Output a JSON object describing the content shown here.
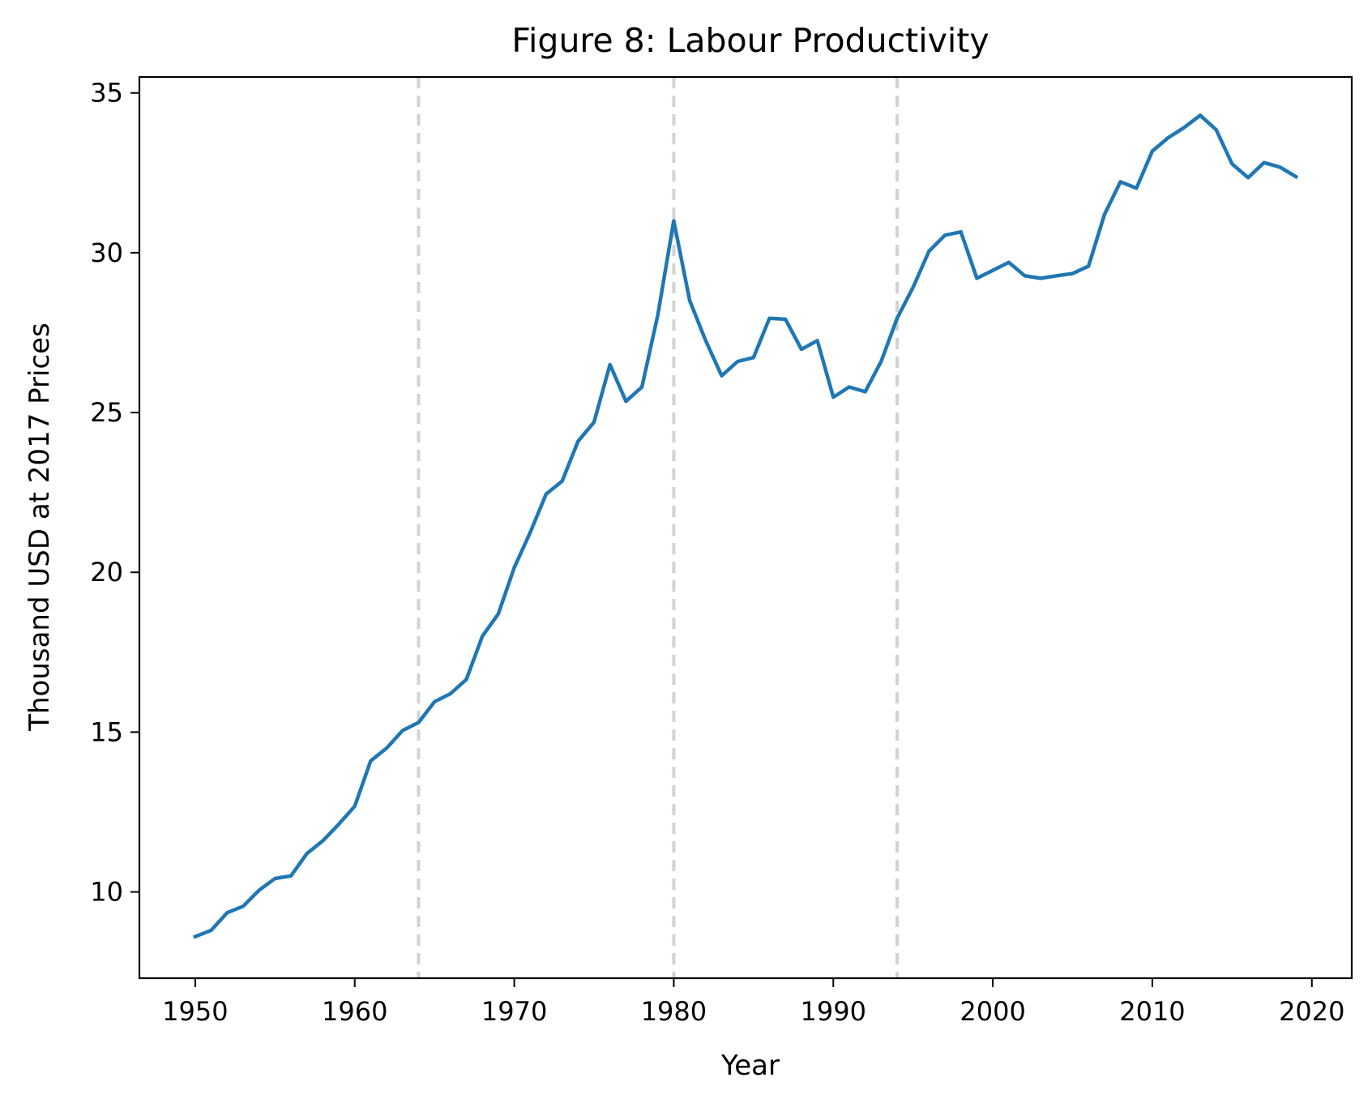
{
  "chart_data": {
    "type": "line",
    "title": "Figure 8: Labour Productivity",
    "xlabel": "Year",
    "ylabel": "Thousand USD at 2017 Prices",
    "xlim": [
      1946.5,
      2022.5
    ],
    "ylim": [
      7.3,
      35.5
    ],
    "x_ticks": [
      1950,
      1960,
      1970,
      1980,
      1990,
      2000,
      2010,
      2020
    ],
    "y_ticks": [
      10,
      15,
      20,
      25,
      30,
      35
    ],
    "grid": false,
    "vertical_reference_lines": {
      "x": [
        1964,
        1980,
        1994
      ],
      "style": "dashed",
      "color": "#d3d3d3"
    },
    "series": [
      {
        "color": "#1f77b4",
        "x": [
          1950,
          1951,
          1952,
          1953,
          1954,
          1955,
          1956,
          1957,
          1958,
          1959,
          1960,
          1961,
          1962,
          1963,
          1964,
          1965,
          1966,
          1967,
          1968,
          1969,
          1970,
          1971,
          1972,
          1973,
          1974,
          1975,
          1976,
          1977,
          1978,
          1979,
          1980,
          1981,
          1982,
          1983,
          1984,
          1985,
          1986,
          1987,
          1988,
          1989,
          1990,
          1991,
          1992,
          1993,
          1994,
          1995,
          1996,
          1997,
          1998,
          1999,
          2000,
          2001,
          2002,
          2003,
          2004,
          2005,
          2006,
          2007,
          2008,
          2009,
          2010,
          2011,
          2012,
          2013,
          2014,
          2015,
          2016,
          2017,
          2018,
          2019
        ],
        "values": [
          8.6,
          8.8,
          9.35,
          9.55,
          10.05,
          10.42,
          10.5,
          11.2,
          11.6,
          12.12,
          12.68,
          14.1,
          14.5,
          15.05,
          15.3,
          15.95,
          16.2,
          16.65,
          18.0,
          18.7,
          20.15,
          21.25,
          22.45,
          22.85,
          24.1,
          24.7,
          26.5,
          25.35,
          25.8,
          28.05,
          31.0,
          28.5,
          27.25,
          26.15,
          26.6,
          26.72,
          27.95,
          27.92,
          26.98,
          27.25,
          25.48,
          25.8,
          25.65,
          26.6,
          27.95,
          28.92,
          30.05,
          30.55,
          30.65,
          29.2,
          29.45,
          29.7,
          29.28,
          29.2,
          29.28,
          29.35,
          29.58,
          31.2,
          32.22,
          32.02,
          33.18,
          33.6,
          33.92,
          34.3,
          33.85,
          32.78,
          32.35,
          32.82,
          32.68,
          32.38
        ]
      }
    ]
  }
}
